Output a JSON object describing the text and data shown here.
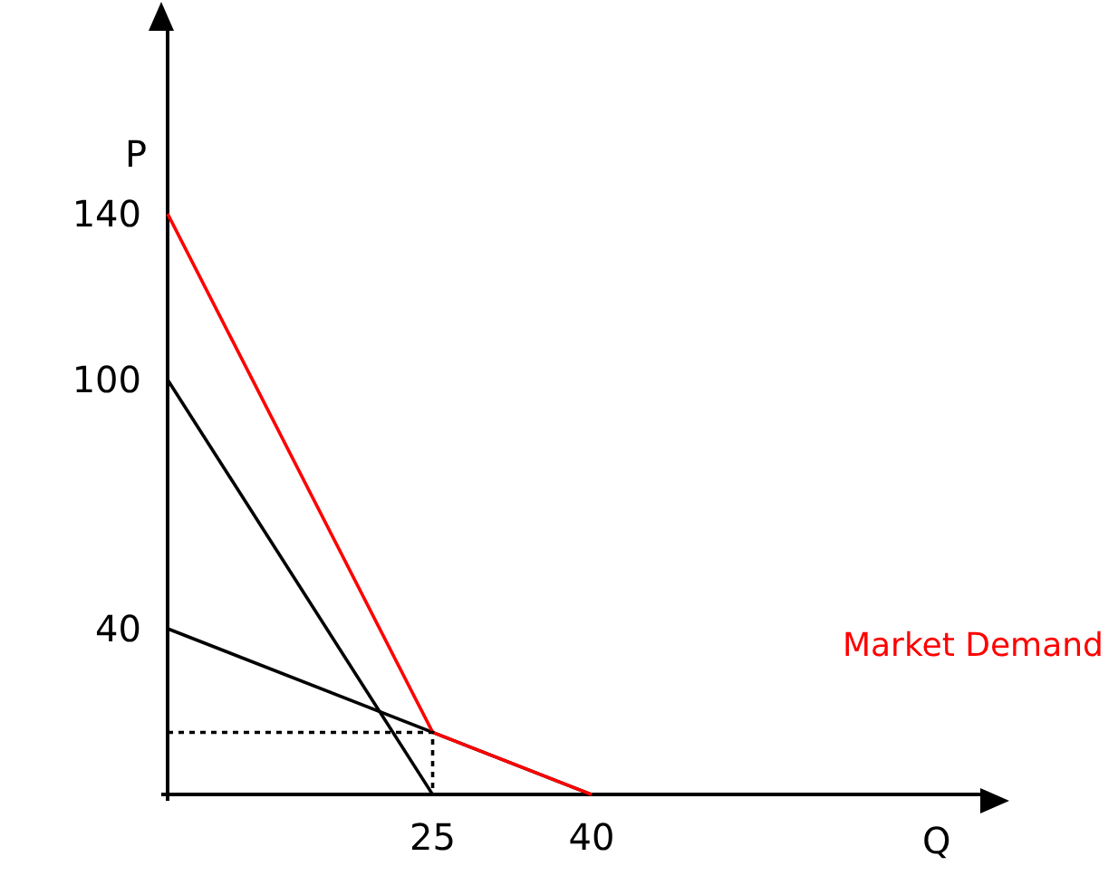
{
  "chart_data": {
    "type": "line",
    "xlabel": "Q",
    "ylabel": "P",
    "xlim": [
      -0.6,
      77
    ],
    "ylim": [
      -1.5,
      185
    ],
    "xticks": [
      25,
      40
    ],
    "yticks": [
      40,
      100,
      140
    ],
    "grid": false,
    "legend": false,
    "marker": "none",
    "series": [
      {
        "color": "#000000",
        "x": [
          0,
          25
        ],
        "values": [
          100,
          0
        ]
      },
      {
        "color": "#000000",
        "x": [
          0,
          40
        ],
        "values": [
          40,
          0
        ]
      },
      {
        "name": "Market Demand",
        "color": "#ff0000",
        "x": [
          0,
          25,
          40
        ],
        "values": [
          140,
          15,
          0
        ]
      },
      {
        "color": "#000000",
        "x": [
          0,
          25,
          25
        ],
        "values": [
          15,
          15,
          0
        ],
        "line_style": "dotted"
      }
    ]
  }
}
